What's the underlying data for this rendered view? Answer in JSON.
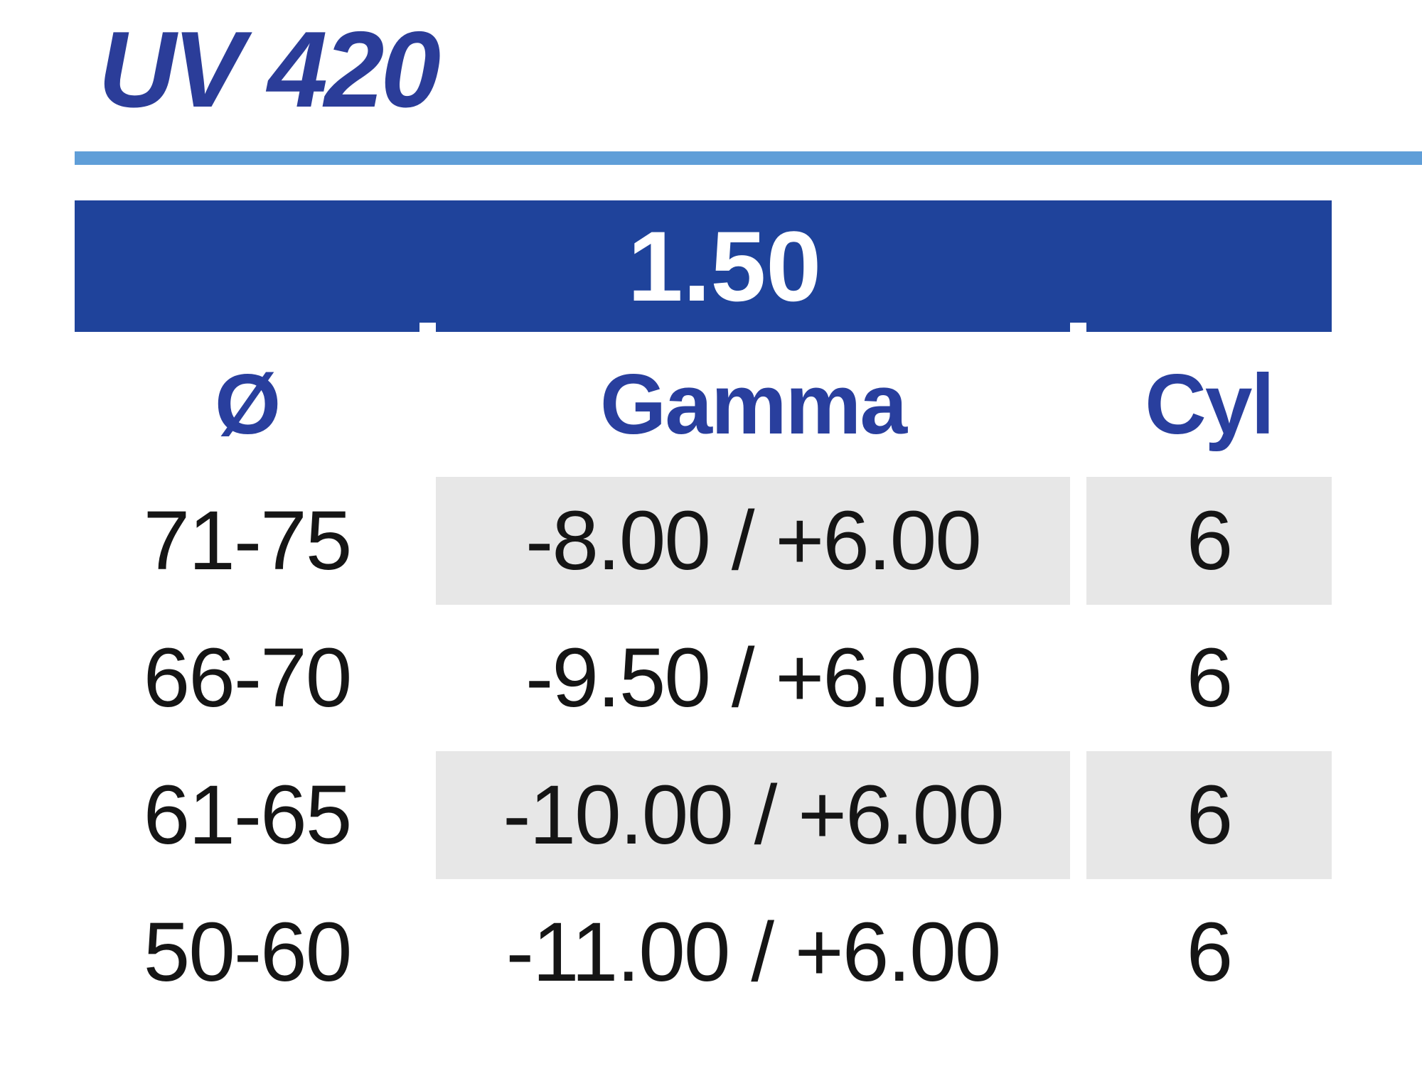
{
  "title": "UV 420",
  "theme": {
    "title_blue": "#2b3d99",
    "rule_blue": "#5f9ed8",
    "bar_blue": "#1f439b",
    "header_blue": "#293f9e",
    "row_gray": "#e7e7e7",
    "body_text": "#151515"
  },
  "table": {
    "index_label": "1.50",
    "columns": [
      {
        "key": "diameter",
        "label": "Ø"
      },
      {
        "key": "gamma",
        "label": "Gamma"
      },
      {
        "key": "cyl",
        "label": "Cyl"
      }
    ],
    "rows": [
      {
        "diameter": "71-75",
        "gamma": "-8.00 / +6.00",
        "cyl": "6"
      },
      {
        "diameter": "66-70",
        "gamma": "-9.50 / +6.00",
        "cyl": "6"
      },
      {
        "diameter": "61-65",
        "gamma": "-10.00 / +6.00",
        "cyl": "6"
      },
      {
        "diameter": "50-60",
        "gamma": "-11.00 / +6.00",
        "cyl": "6"
      }
    ]
  }
}
